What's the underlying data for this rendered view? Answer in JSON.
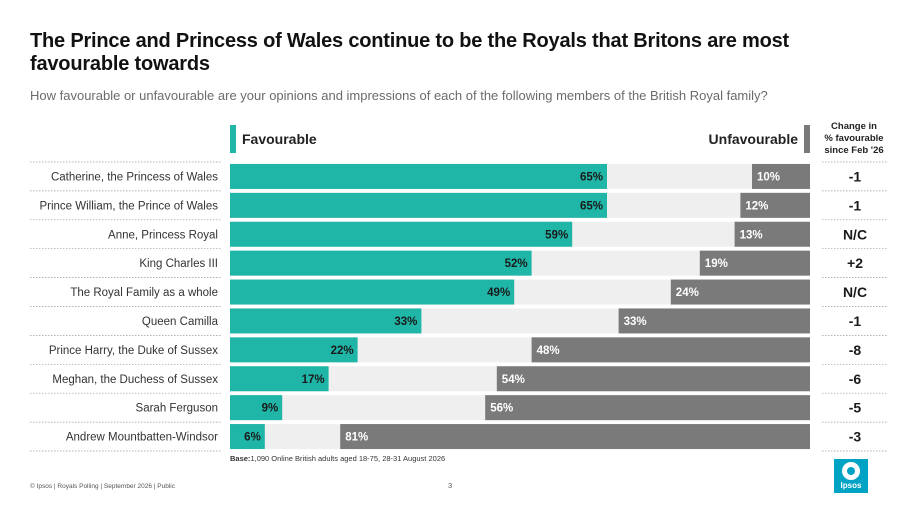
{
  "title": "The Prince and Princess of Wales continue to be the Royals that Britons are most favourable towards",
  "subtitle": "How favourable or unfavourable are your opinions  and impressions of each of the following members of the British Royal family?",
  "legend": {
    "favourable": "Favourable",
    "unfavourable": "Unfavourable"
  },
  "change_header": [
    "Change in",
    "% favourable",
    "since Feb '26"
  ],
  "base_label": "Base:",
  "base_text": "1,090 Online British adults aged 18-75, 28-31 August 2026",
  "footer": "© Ipsos | Royals Polling | September 2026 | Public",
  "page_number": "3",
  "logo_text": "Ipsos",
  "colors": {
    "favourable": "#1fb5a7",
    "unfavourable": "#7a7a7a",
    "track": "#efefef"
  },
  "chart_data": {
    "type": "bar",
    "orientation": "horizontal",
    "xlim": [
      0,
      100
    ],
    "categories": [
      "Catherine, the Princess of Wales",
      "Prince William, the Prince of Wales",
      "Anne, Princess Royal",
      "King Charles III",
      "The Royal Family as a whole",
      "Queen Camilla",
      "Prince Harry, the Duke of Sussex",
      "Meghan, the Duchess of Sussex",
      "Sarah Ferguson",
      "Andrew Mountbatten-Windsor"
    ],
    "series": [
      {
        "name": "Favourable",
        "values": [
          65,
          65,
          59,
          52,
          49,
          33,
          22,
          17,
          9,
          6
        ]
      },
      {
        "name": "Unfavourable",
        "values": [
          10,
          12,
          13,
          19,
          24,
          33,
          48,
          54,
          56,
          81
        ]
      }
    ],
    "change": [
      "-1",
      "-1",
      "N/C",
      "+2",
      "N/C",
      "-1",
      "-8",
      "-6",
      "-5",
      "-3"
    ]
  }
}
